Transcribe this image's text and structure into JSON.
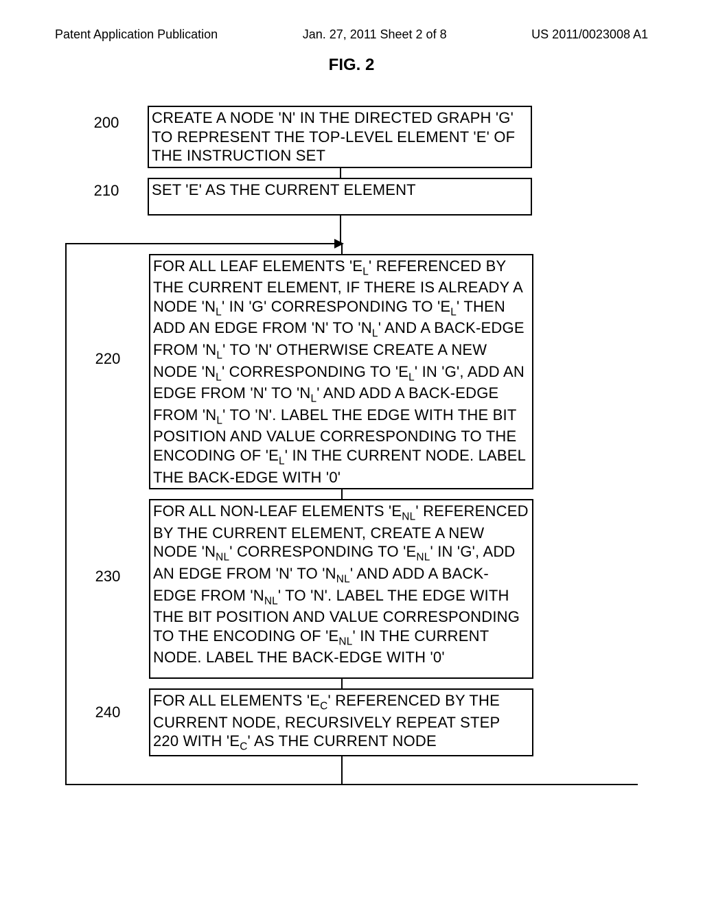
{
  "header": {
    "left": "Patent Application Publication",
    "center": "Jan. 27, 2011  Sheet 2 of 8",
    "right": "US 2011/0023008 A1"
  },
  "figure_title": "FIG. 2",
  "flowchart": {
    "type": "flowchart",
    "border_color": "#000000",
    "background_color": "#ffffff",
    "font_family": "Arial",
    "box_fontsize": 22,
    "label_fontsize": 22,
    "border_width": 2,
    "steps": [
      {
        "id": "200",
        "text_parts": [
          "CREATE A NODE 'N' IN THE DIRECTED GRAPH 'G' TO REPRESENT THE TOP-LEVEL ELEMENT 'E' OF THE INSTRUCTION SET"
        ]
      },
      {
        "id": "210",
        "text_parts": [
          "SET 'E' AS THE CURRENT ELEMENT"
        ]
      },
      {
        "id": "220",
        "text_parts": [
          "FOR ALL LEAF ELEMENTS 'E",
          {
            "sub": "L"
          },
          "' REFERENCED BY THE CURRENT ELEMENT, IF THERE IS ALREADY A NODE 'N",
          {
            "sub": "L"
          },
          "' IN 'G' CORRESPONDING TO 'E",
          {
            "sub": "L"
          },
          "' THEN ADD AN EDGE FROM 'N' TO 'N",
          {
            "sub": "L"
          },
          "' AND A BACK-EDGE FROM 'N",
          {
            "sub": "L"
          },
          "' to 'N' OTHERWISE CREATE A NEW NODE 'N",
          {
            "sub": "L"
          },
          "' CORRESPONDING TO 'E",
          {
            "sub": "L"
          },
          "' IN 'G', ADD AN EDGE FROM 'N' TO 'N",
          {
            "sub": "L"
          },
          "' AND ADD A BACK-EDGE FROM 'N",
          {
            "sub": "L"
          },
          "' TO 'N'. LABEL THE EDGE WITH THE BIT POSITION AND VALUE CORRESPONDING TO THE ENCODING OF 'E",
          {
            "sub": "L"
          },
          "' IN THE CURRENT NODE. LABEL THE BACK-EDGE WITH '0'"
        ]
      },
      {
        "id": "230",
        "text_parts": [
          "FOR ALL NON-LEAF ELEMENTS 'E",
          {
            "sub": "NL"
          },
          "' REFERENCED BY THE CURRENT ELEMENT, CREATE A NEW NODE 'N",
          {
            "sub": "NL"
          },
          "' CORRESPONDING TO 'E",
          {
            "sub": "NL"
          },
          "' IN 'G', ADD AN EDGE FROM 'N' TO 'N",
          {
            "sub": "NL"
          },
          "' AND ADD A BACK-EDGE FROM 'N",
          {
            "sub": "NL"
          },
          "' TO 'N'. LABEL THE EDGE WITH THE BIT POSITION AND VALUE CORRESPONDING TO THE ENCODING OF 'E",
          {
            "sub": "NL"
          },
          "' IN THE CURRENT NODE. LABEL THE BACK-EDGE WITH '0'"
        ]
      },
      {
        "id": "240",
        "text_parts": [
          "FOR ALL ELEMENTS 'E",
          {
            "sub": "c"
          },
          "' REFERENCED BY THE CURRENT NODE, RECURSIVELY REPEAT STEP 220 WITH 'E",
          {
            "sub": "c"
          },
          "' AS THE CURRENT NODE"
        ]
      }
    ],
    "loop": {
      "from": "240",
      "to": "220"
    }
  }
}
